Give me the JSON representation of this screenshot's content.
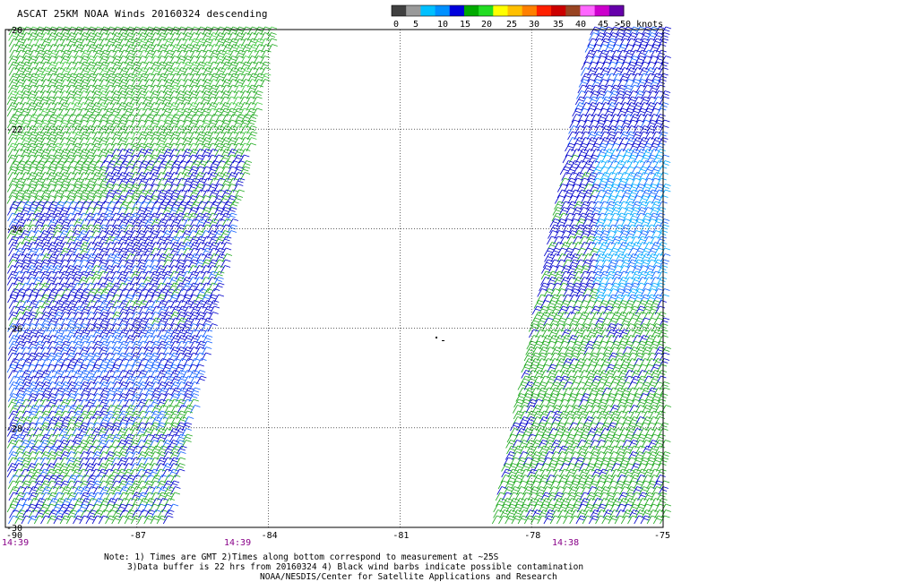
{
  "title": "ASCAT 25KM NOAA Winds 20160324 descending",
  "colorbar": {
    "colors": [
      "#404040",
      "#9a9a9a",
      "#00c0ff",
      "#0090ff",
      "#0000dd",
      "#00aa00",
      "#22dd22",
      "#ffff00",
      "#ffc000",
      "#ff8000",
      "#ff2000",
      "#cc0000",
      "#994422",
      "#ff66ff",
      "#cc00cc",
      "#6600aa"
    ],
    "labels": [
      "0",
      "5",
      "10",
      "15",
      "20",
      "25",
      "30",
      "35",
      "40",
      "45",
      ">50 knots"
    ]
  },
  "map": {
    "lon_range": [
      -90,
      -75
    ],
    "lat_range": [
      -30,
      -20
    ],
    "x_ticks": [
      "-90",
      "-87",
      "-84",
      "-81",
      "-78",
      "-75"
    ],
    "y_ticks": [
      "-20",
      "-22",
      "-24",
      "-26",
      "-28",
      "-30"
    ],
    "times": [
      "14:39",
      "14:39",
      "14:38"
    ],
    "time_color": "#880088",
    "grid_color": "#000000"
  },
  "notes": {
    "line1": "Note: 1) Times are GMT 2)Times along bottom correspond to measurement at ~25S",
    "line2": "3)Data buffer is 22 hrs from 20160324 4) Black wind barbs indicate possible contamination",
    "line3": "NOAA/NESDIS/Center for Satellite Applications and Research"
  }
}
